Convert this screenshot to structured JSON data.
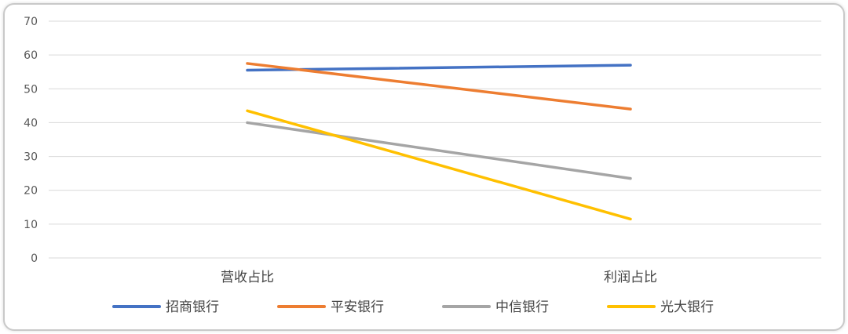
{
  "chart_data": {
    "type": "line",
    "categories": [
      "营收占比",
      "利润占比"
    ],
    "series": [
      {
        "name": "招商银行",
        "color": "#4472C4",
        "values": [
          55.5,
          57
        ]
      },
      {
        "name": "平安银行",
        "color": "#ED7D31",
        "values": [
          57.5,
          44
        ]
      },
      {
        "name": "中信银行",
        "color": "#A5A5A5",
        "values": [
          40,
          23.5
        ]
      },
      {
        "name": "光大银行",
        "color": "#FFC000",
        "values": [
          43.5,
          11.5
        ]
      }
    ],
    "yticks": [
      "0",
      "10",
      "20",
      "30",
      "40",
      "50",
      "60",
      "70"
    ],
    "ylim": [
      0,
      70
    ],
    "grid": true,
    "legend_position": "bottom"
  }
}
